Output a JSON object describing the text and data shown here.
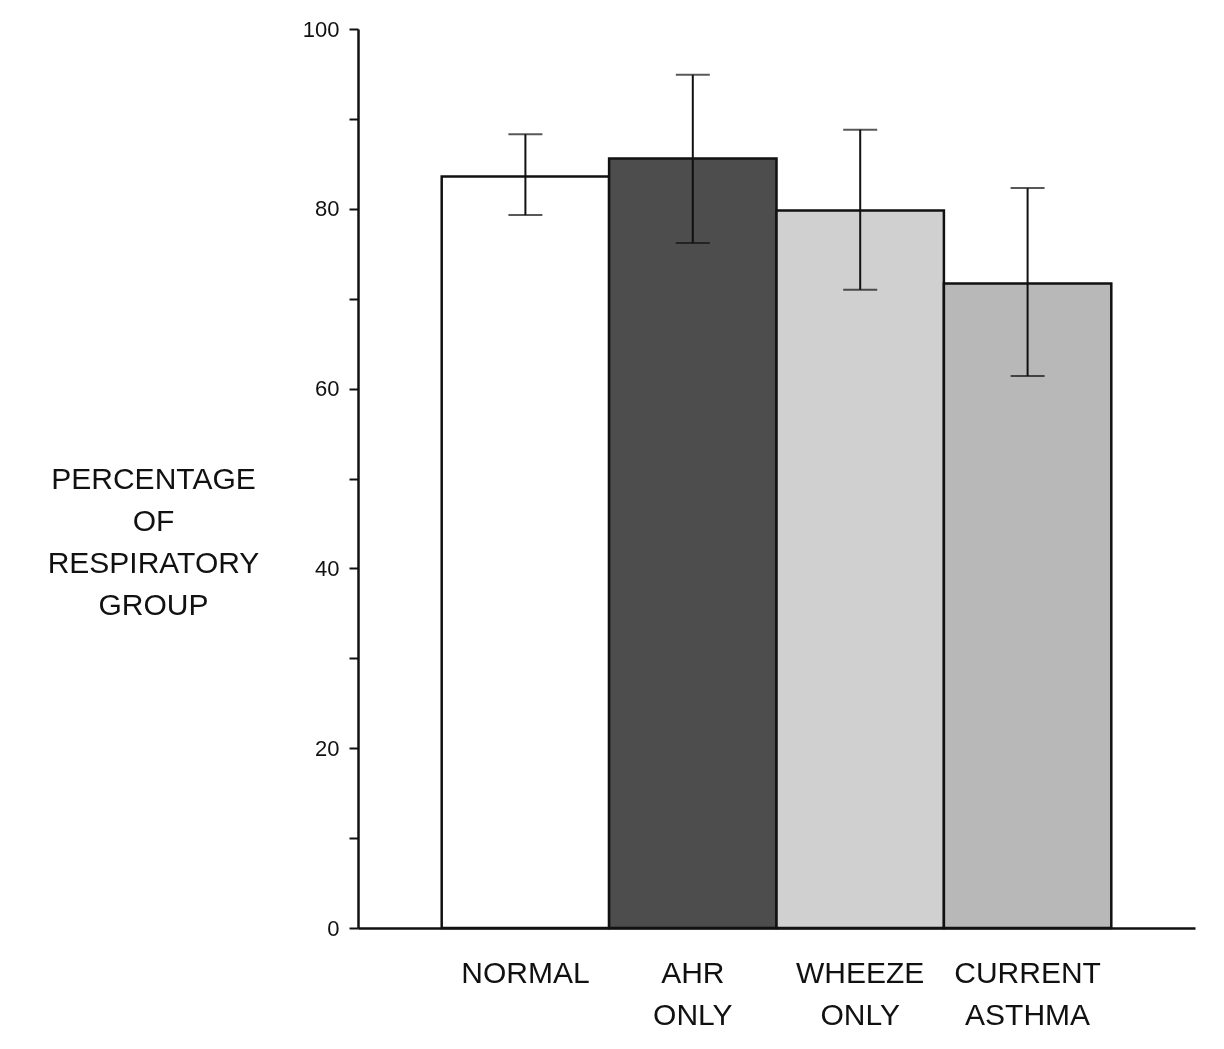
{
  "chart_data": {
    "type": "bar",
    "ylabel": "PERCENTAGE OF RESPIRATORY GROUP",
    "categories": [
      "NORMAL",
      "AHR ONLY",
      "WHEEZE ONLY",
      "CURRENT ASTHMA"
    ],
    "values": [
      83.6,
      85.6,
      79.8,
      71.7
    ],
    "errors": [
      [
        79.3,
        88.3
      ],
      [
        76.2,
        94.9
      ],
      [
        71.0,
        88.8
      ],
      [
        61.4,
        82.3
      ]
    ],
    "colors": [
      "#ffffff",
      "#4d4d4d",
      "#d0d0d0",
      "#b8b8b8"
    ],
    "ylim": [
      0,
      100
    ],
    "yticks": [
      0,
      {
        "value": 10,
        "label": null
      },
      20,
      {
        "value": 30,
        "label": null
      },
      40,
      {
        "value": 50,
        "label": null
      },
      60,
      {
        "value": 70,
        "label": null
      },
      80,
      {
        "value": 90,
        "label": null
      },
      100
    ],
    "grid": false
  }
}
